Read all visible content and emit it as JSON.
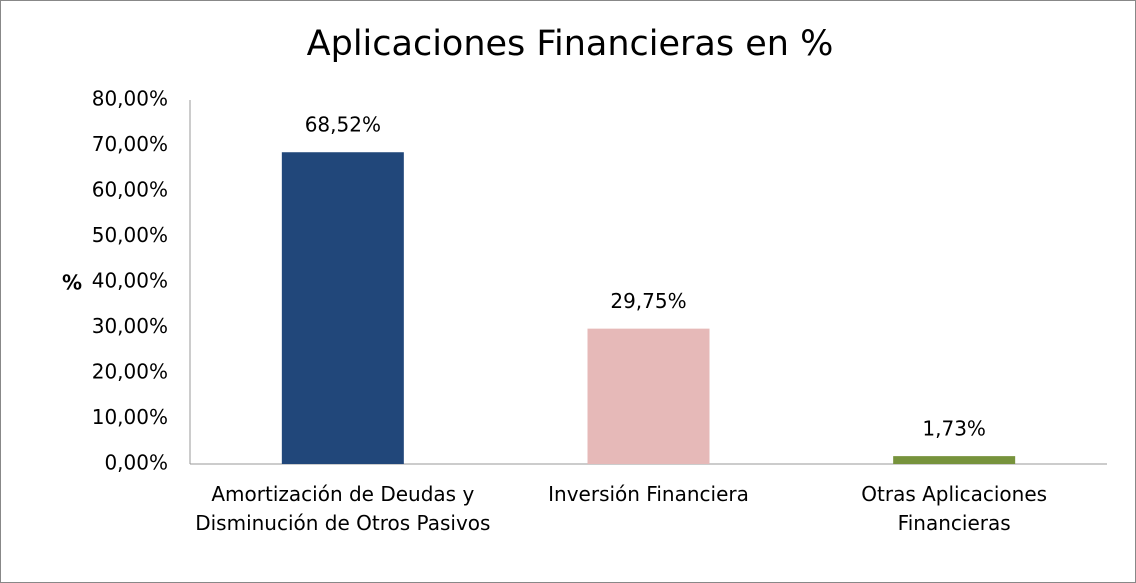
{
  "chart_data": {
    "type": "bar",
    "title": "Aplicaciones Financieras en %",
    "y_label": "%",
    "categories": [
      "Amortización de Deudas y Disminución de Otros Pasivos",
      "Inversión Financiera",
      "Otras Aplicaciones Financieras"
    ],
    "values": [
      68.52,
      29.75,
      1.73
    ],
    "value_labels": [
      "68,52%",
      "29,75%",
      "1,73%"
    ],
    "colors": [
      "#21477a",
      "#e6b9b8",
      "#77933c"
    ],
    "ylim": [
      0,
      80
    ],
    "yticks": [
      {
        "value": 0,
        "label": "0,00%"
      },
      {
        "value": 10,
        "label": "10,00%"
      },
      {
        "value": 20,
        "label": "20,00%"
      },
      {
        "value": 30,
        "label": "30,00%"
      },
      {
        "value": 40,
        "label": "40,00%"
      },
      {
        "value": 50,
        "label": "50,00%"
      },
      {
        "value": 60,
        "label": "60,00%"
      },
      {
        "value": 70,
        "label": "70,00%"
      },
      {
        "value": 80,
        "label": "80,00%"
      }
    ],
    "grid": false
  }
}
